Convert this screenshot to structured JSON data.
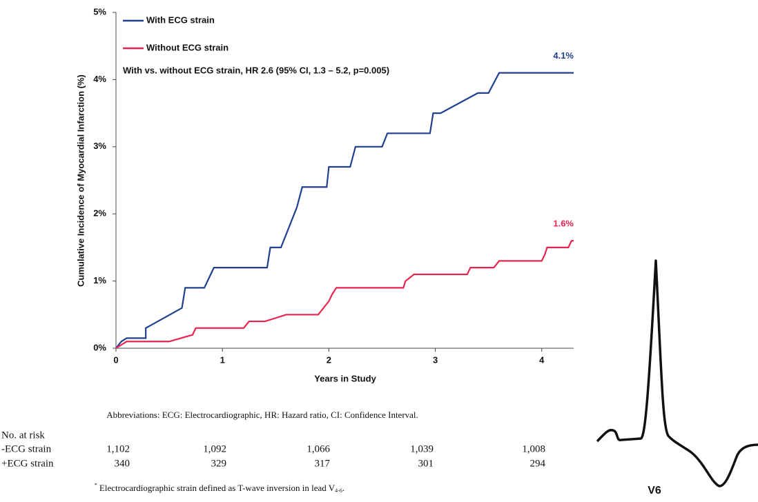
{
  "chart_data": {
    "type": "line",
    "step": true,
    "y_label": "Cumulative Incidence of Myocardial Infarction (%)",
    "x_label": "Years in Study",
    "annotation": "With vs. without ECG strain, HR 2.6 (95% CI, 1.3 – 5.2, p=0.005)",
    "xlim": [
      0,
      4.3
    ],
    "ylim": [
      0,
      5
    ],
    "xticks": [
      0,
      1,
      2,
      3,
      4
    ],
    "yticks": [
      {
        "value": 0,
        "label": "0%"
      },
      {
        "value": 1,
        "label": "1%"
      },
      {
        "value": 2,
        "label": "2%"
      },
      {
        "value": 3,
        "label": "3%"
      },
      {
        "value": 4,
        "label": "4%"
      },
      {
        "value": 5,
        "label": "5%"
      }
    ],
    "grid": false,
    "legend": "upper left",
    "series": [
      {
        "name": "With ECG strain",
        "color": "#1f3f8f",
        "x": [
          0,
          0.05,
          0.1,
          0.28,
          0.28,
          0.62,
          0.65,
          0.83,
          0.92,
          1.42,
          1.45,
          1.55,
          1.7,
          1.75,
          1.98,
          2.0,
          2.2,
          2.25,
          2.5,
          2.55,
          2.95,
          2.98,
          3.05,
          3.4,
          3.5,
          3.6,
          4.3
        ],
        "values": [
          0,
          0.1,
          0.15,
          0.15,
          0.3,
          0.6,
          0.9,
          0.9,
          1.2,
          1.2,
          1.5,
          1.5,
          2.1,
          2.4,
          2.4,
          2.7,
          2.7,
          3.0,
          3.0,
          3.2,
          3.2,
          3.5,
          3.5,
          3.8,
          3.8,
          4.1,
          4.1
        ],
        "end_label": {
          "value": 4.1,
          "label": "4.1%"
        }
      },
      {
        "name": "Without ECG strain",
        "color": "#e8254f",
        "x": [
          0,
          0.1,
          0.5,
          0.72,
          0.75,
          1.2,
          1.25,
          1.4,
          1.6,
          1.9,
          2.0,
          2.03,
          2.07,
          2.7,
          2.72,
          2.8,
          3.3,
          3.33,
          3.55,
          3.6,
          4.0,
          4.03,
          4.05,
          4.25,
          4.28,
          4.3
        ],
        "values": [
          0,
          0.1,
          0.1,
          0.2,
          0.3,
          0.3,
          0.4,
          0.4,
          0.5,
          0.5,
          0.7,
          0.8,
          0.9,
          0.9,
          1.0,
          1.1,
          1.1,
          1.2,
          1.2,
          1.3,
          1.3,
          1.4,
          1.5,
          1.5,
          1.6,
          1.6
        ],
        "end_label": {
          "value": 1.6,
          "label": "1.6%"
        }
      }
    ]
  },
  "abbreviations": "Abbreviations: ECG: Electrocardiographic, HR: Hazard ratio, CI: Confidence Interval.",
  "risk_table": {
    "title": "No. at risk",
    "rows": [
      {
        "label": "-ECG strain",
        "values": [
          "1,102",
          "1,092",
          "1,066",
          "1,039",
          "1,008"
        ]
      },
      {
        "label": "+ECG strain",
        "values": [
          "340",
          "329",
          "317",
          "301",
          "294"
        ]
      }
    ]
  },
  "footnote": {
    "mark": "*",
    "text": "Electrocardiographic strain defined as T-wave inversion in lead V",
    "subscript": "4-6",
    "end": "."
  },
  "ecg_label": "V6"
}
